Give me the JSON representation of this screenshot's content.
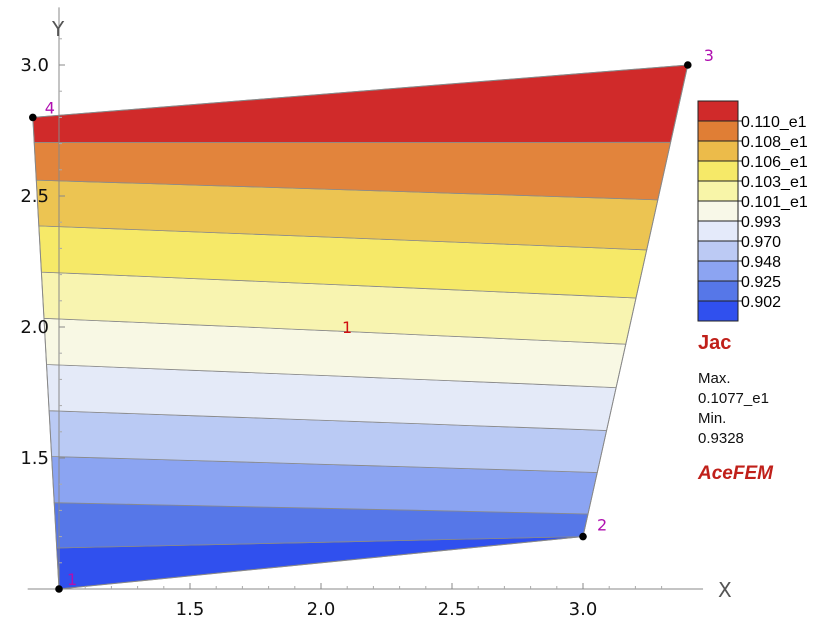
{
  "chart_data": {
    "type": "contour",
    "xlabel": "X",
    "ylabel": "Y",
    "x_ticks": [
      "1.5",
      "2.0",
      "2.5",
      "3.0"
    ],
    "y_ticks": [
      "1.5",
      "2.0",
      "2.5",
      "3.0"
    ],
    "xlim": [
      0.995,
      3.42
    ],
    "ylim": [
      1.0,
      3.22
    ],
    "element": {
      "label": "1",
      "label_position": [
        2.08,
        2.0
      ],
      "nodes": [
        {
          "label": "1",
          "x": 1.0,
          "y": 1.0
        },
        {
          "label": "2",
          "x": 3.0,
          "y": 1.2
        },
        {
          "label": "3",
          "x": 3.4,
          "y": 3.0
        },
        {
          "label": "4",
          "x": 0.9,
          "y": 2.8
        }
      ]
    },
    "contour_bands": {
      "min_value": 0.9328,
      "max_value": 1.077,
      "count": 11,
      "colors": [
        "#3050ee",
        "#5677e8",
        "#8ba4f2",
        "#bacaf4",
        "#e4eaf8",
        "#f8f8e4",
        "#f8f4b0",
        "#f6e968",
        "#ecc452",
        "#e2843c",
        "#d02a2a"
      ]
    },
    "legend": {
      "entries": [
        {
          "label": "0.110_e1",
          "color": "#d02a2a"
        },
        {
          "label": "0.108_e1",
          "color": "#e07e35"
        },
        {
          "label": "0.106_e1",
          "color": "#ecbb4a"
        },
        {
          "label": "0.103_e1",
          "color": "#f6e968"
        },
        {
          "label": "0.101_e1",
          "color": "#f8f5a8"
        },
        {
          "label": "0.993",
          "color": "#f8f8e8"
        },
        {
          "label": "0.970",
          "color": "#e4eafa"
        },
        {
          "label": "0.948",
          "color": "#bccaf4"
        },
        {
          "label": "0.925",
          "color": "#8ca4f2"
        },
        {
          "label": "0.902",
          "color": "#5677e8"
        },
        {
          "label": "",
          "color": "#3050ee"
        }
      ]
    }
  },
  "info": {
    "variable": "Jac",
    "max_label": "Max.",
    "max_value": "0.1077_e1",
    "min_label": "Min.",
    "min_value": "0.9328",
    "brand": "AceFEM"
  }
}
